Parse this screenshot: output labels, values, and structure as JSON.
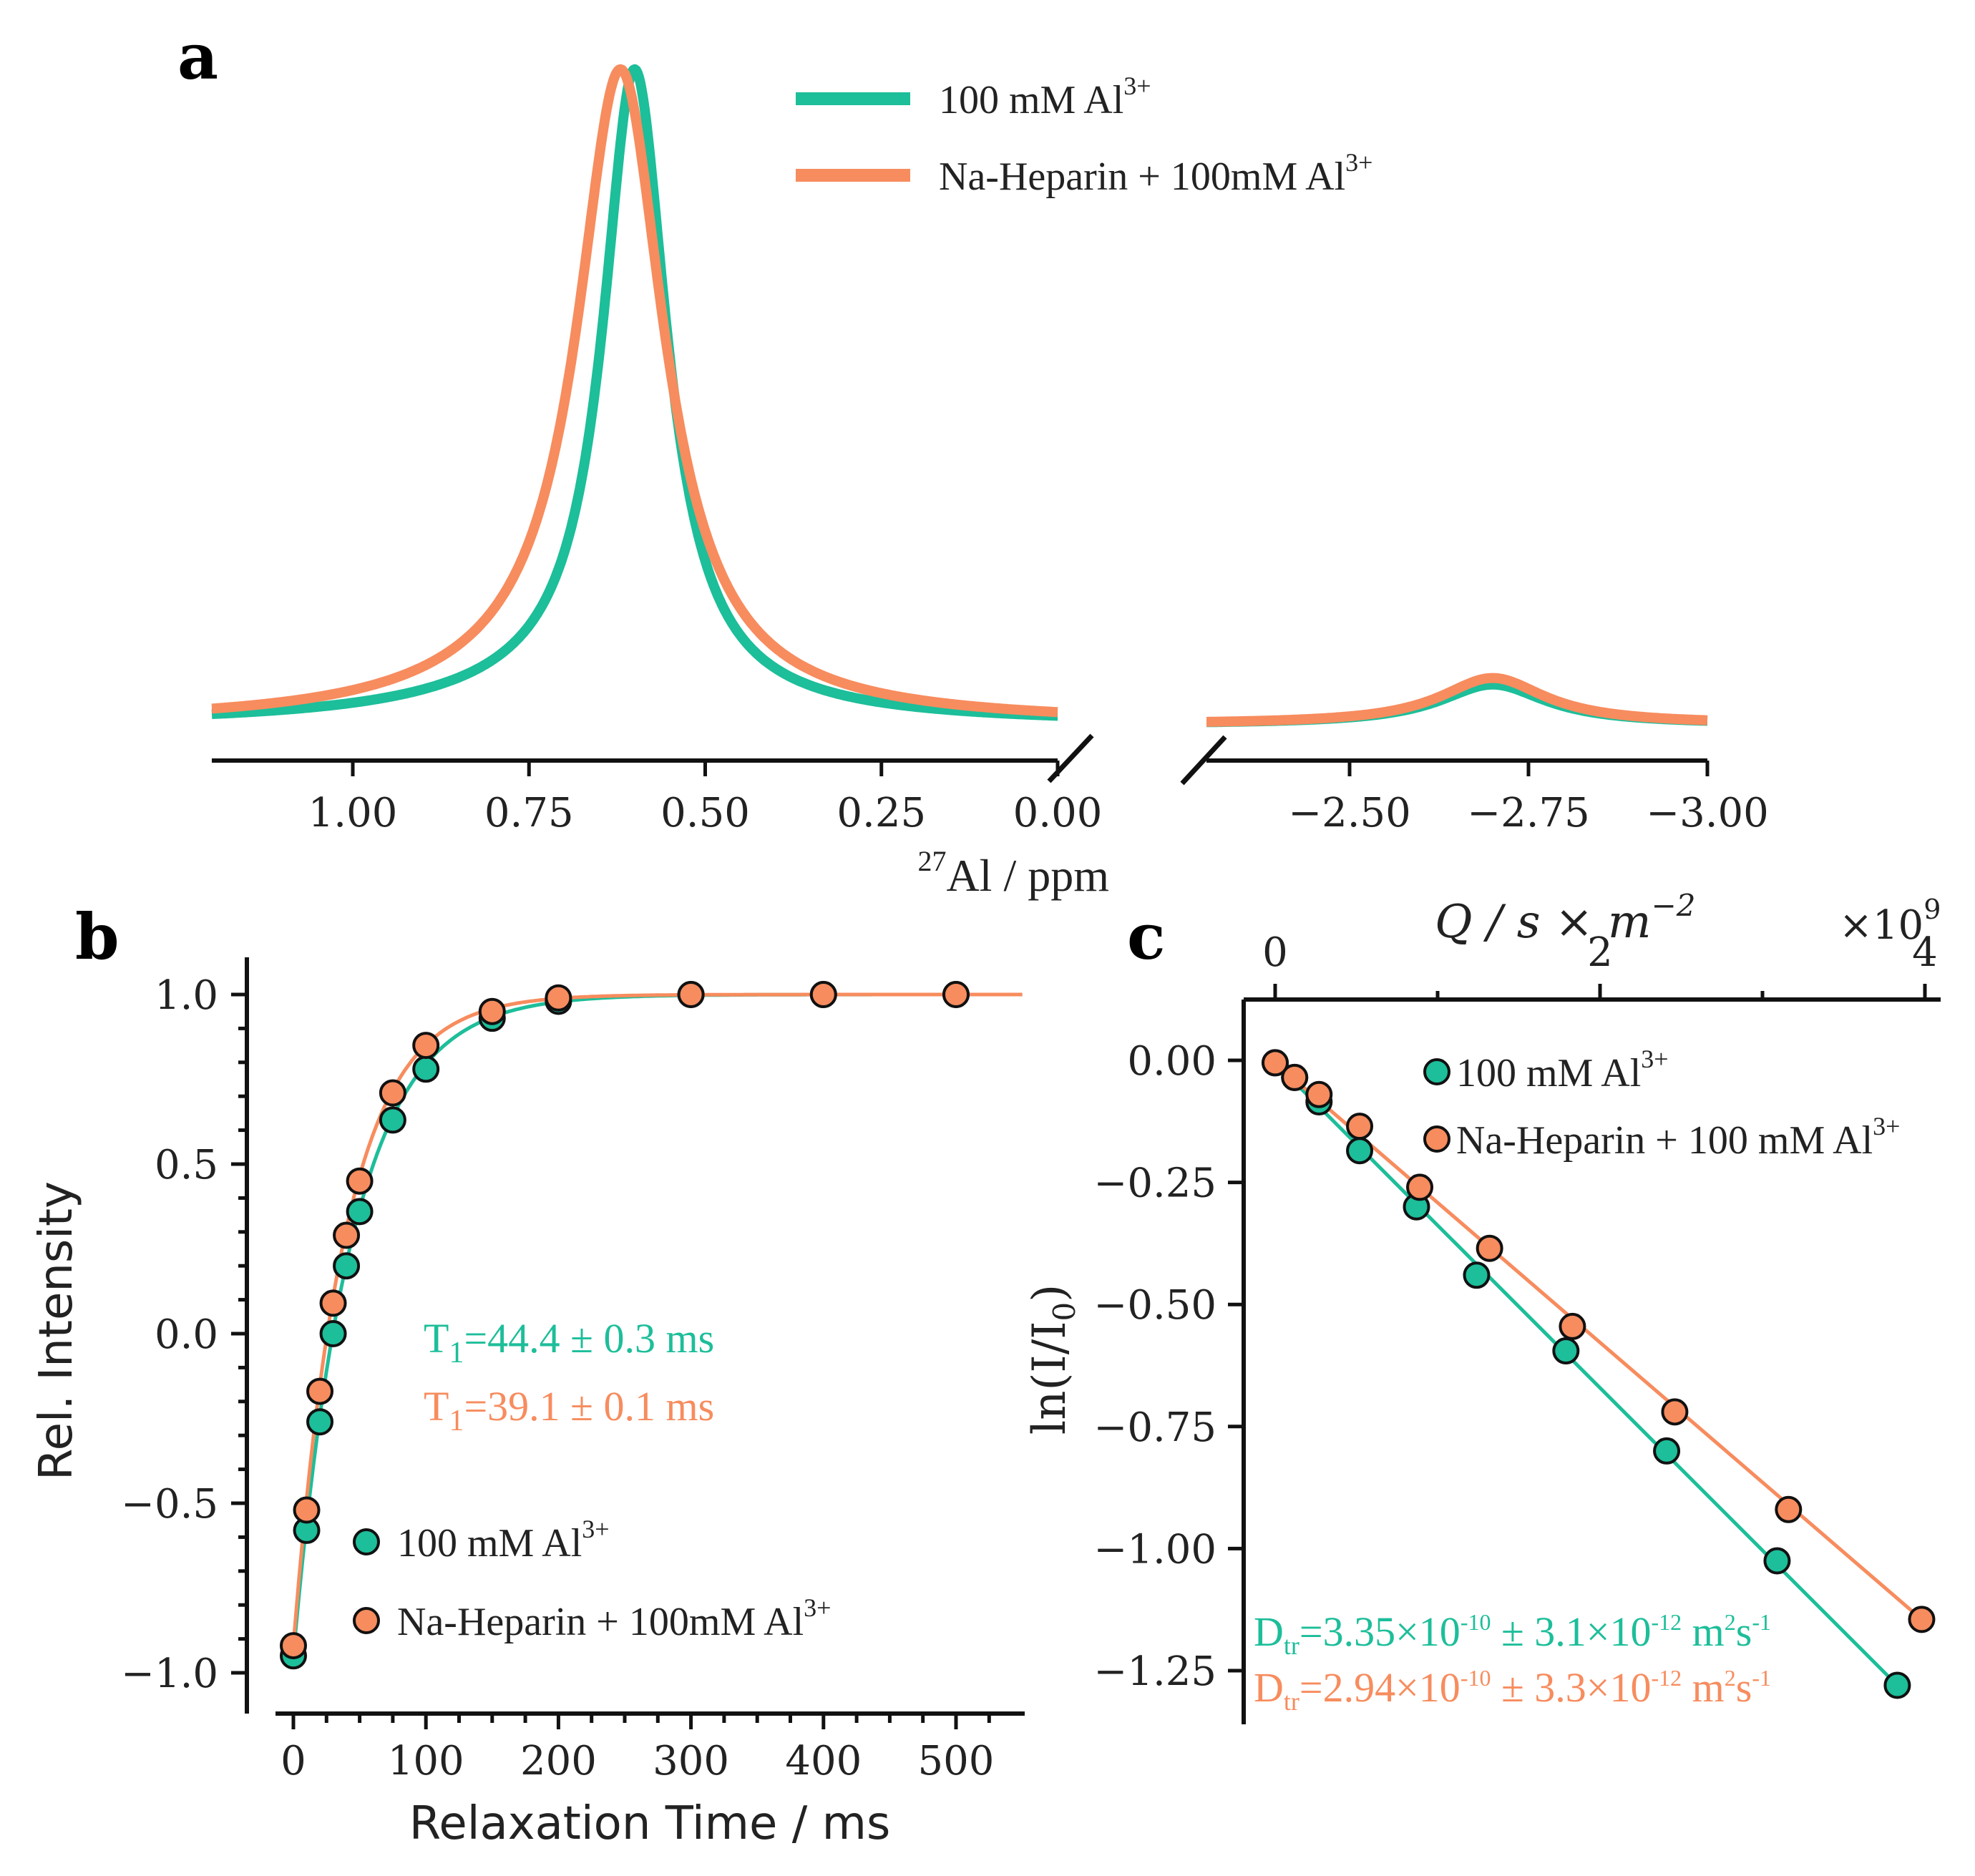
{
  "colors": {
    "teal": "#1DBE9A",
    "orange": "#F78C5E",
    "axis": "#111111"
  },
  "chart_data": [
    {
      "type": "line",
      "panel": "a",
      "title": "",
      "xlabel_sup": "27",
      "xlabel": "Al / ppm",
      "broken_axis": true,
      "xlim_left": [
        1.2,
        0.0
      ],
      "xlim_right": [
        -2.3,
        -3.0
      ],
      "xticks_left": [
        "1.00",
        "0.75",
        "0.50",
        "0.25",
        "0.00"
      ],
      "xticks_right": [
        "−2.50",
        "−2.75",
        "−3.00"
      ],
      "legend": [
        {
          "label": "100 mM Al",
          "sup": "3+",
          "color": "#1DBE9A"
        },
        {
          "label": "Na-Heparin + 100mM Al",
          "sup": "3+",
          "color": "#F78C5E"
        }
      ],
      "series": [
        {
          "name": "100 mM Al3+",
          "peak_center_ppm": 0.6,
          "peak_height": 1.0,
          "peak_width_ppm": 0.055,
          "minor_peak_center_ppm": -2.7,
          "minor_peak_height": 0.06,
          "minor_peak_width_ppm": 0.09
        },
        {
          "name": "Na-Heparin + 100mM Al3+",
          "peak_center_ppm": 0.62,
          "peak_height": 1.0,
          "peak_width_ppm": 0.075,
          "minor_peak_center_ppm": -2.7,
          "minor_peak_height": 0.07,
          "minor_peak_width_ppm": 0.09
        }
      ]
    },
    {
      "type": "scatter",
      "panel": "b",
      "xlabel": "Relaxation Time / ms",
      "ylabel": "Rel. Intensity",
      "xlim": [
        -12,
        550
      ],
      "ylim": [
        -1.05,
        1.12
      ],
      "xticks": [
        0,
        100,
        200,
        300,
        400,
        500
      ],
      "yticks": [
        -1.0,
        -0.5,
        0.0,
        0.5,
        1.0
      ],
      "ytick_labels": [
        "−1.0",
        "−0.5",
        "0.0",
        "0.5",
        "1.0"
      ],
      "legend": [
        {
          "label": "100 mM Al",
          "sup": "3+",
          "color": "#1DBE9A"
        },
        {
          "label": "Na-Heparin + 100mM Al",
          "sup": "3+",
          "color": "#F78C5E"
        }
      ],
      "annotations": [
        {
          "prefix": "T",
          "sub": "1",
          "text": "=44.4 ± 0.3 ms",
          "color": "#1DBE9A"
        },
        {
          "prefix": "T",
          "sub": "1",
          "text": "=39.1 ± 0.1 ms",
          "color": "#F78C5E"
        }
      ],
      "series": [
        {
          "name": "100 mM Al3+",
          "T1_ms": 44.4,
          "x": [
            0,
            10,
            20,
            30,
            40,
            50,
            75,
            100,
            150,
            200,
            300,
            400,
            500
          ],
          "y": [
            -0.95,
            -0.58,
            -0.26,
            0.0,
            0.2,
            0.36,
            0.63,
            0.78,
            0.93,
            0.98,
            1.0,
            1.0,
            1.0
          ]
        },
        {
          "name": "Na-Heparin + 100mM Al3+",
          "T1_ms": 39.1,
          "x": [
            0,
            10,
            20,
            30,
            40,
            50,
            75,
            100,
            150,
            200,
            300,
            400,
            500
          ],
          "y": [
            -0.92,
            -0.52,
            -0.17,
            0.09,
            0.29,
            0.45,
            0.71,
            0.85,
            0.95,
            0.99,
            1.0,
            1.0,
            1.0
          ]
        }
      ]
    },
    {
      "type": "scatter",
      "panel": "c",
      "xlabel": "Q / s × m",
      "xlabel_sup": "−2",
      "ylabel": "ln(I/I",
      "ylabel_sub": "0",
      "x_multiplier": "×10",
      "x_multiplier_sup": "9",
      "xlim": [
        -0.1,
        4.05
      ],
      "ylim": [
        -1.35,
        0.06
      ],
      "xticks": [
        0,
        2,
        4
      ],
      "yticks": [
        0.0,
        -0.25,
        -0.5,
        -0.75,
        -1.0,
        -1.25
      ],
      "ytick_labels": [
        "0.00",
        "−0.25",
        "−0.50",
        "−0.75",
        "−1.00",
        "−1.25"
      ],
      "legend": [
        {
          "label": "100 mM Al",
          "sup": "3+",
          "color": "#1DBE9A"
        },
        {
          "label": "Na-Heparin + 100 mM Al",
          "sup": "3+",
          "color": "#F78C5E"
        }
      ],
      "annotations": [
        {
          "prefix": "D",
          "sub": "tr",
          "text": "=3.35×10",
          "exp": "-10",
          "mid": " ± 3.1×10",
          "exp2": "-12",
          "unit": " m",
          "unit_sup": "2",
          "unit2": "s",
          "unit2_sup": "-1",
          "color": "#1DBE9A"
        },
        {
          "prefix": "D",
          "sub": "tr",
          "text": "=2.94×10",
          "exp": "-10",
          "mid": " ± 3.3×10",
          "exp2": "-12",
          "unit": " m",
          "unit_sup": "2",
          "unit2": "s",
          "unit2_sup": "-1",
          "color": "#F78C5E"
        }
      ],
      "series": [
        {
          "name": "100 mM Al3+",
          "D_m2_per_s": 3.35e-10,
          "x": [
            0,
            0.12,
            0.27,
            0.52,
            0.87,
            1.24,
            1.79,
            2.41,
            3.09,
            3.83
          ],
          "y": [
            -0.005,
            -0.035,
            -0.085,
            -0.185,
            -0.3,
            -0.44,
            -0.595,
            -0.8,
            -1.025,
            -1.28
          ]
        },
        {
          "name": "Na-Heparin + 100 mM Al3+",
          "D_m2_per_s": 2.94e-10,
          "x": [
            0,
            0.12,
            0.27,
            0.52,
            0.89,
            1.32,
            1.83,
            2.46,
            3.16,
            3.98
          ],
          "y": [
            -0.005,
            -0.035,
            -0.07,
            -0.135,
            -0.26,
            -0.385,
            -0.545,
            -0.72,
            -0.92,
            -1.145
          ]
        }
      ]
    }
  ]
}
